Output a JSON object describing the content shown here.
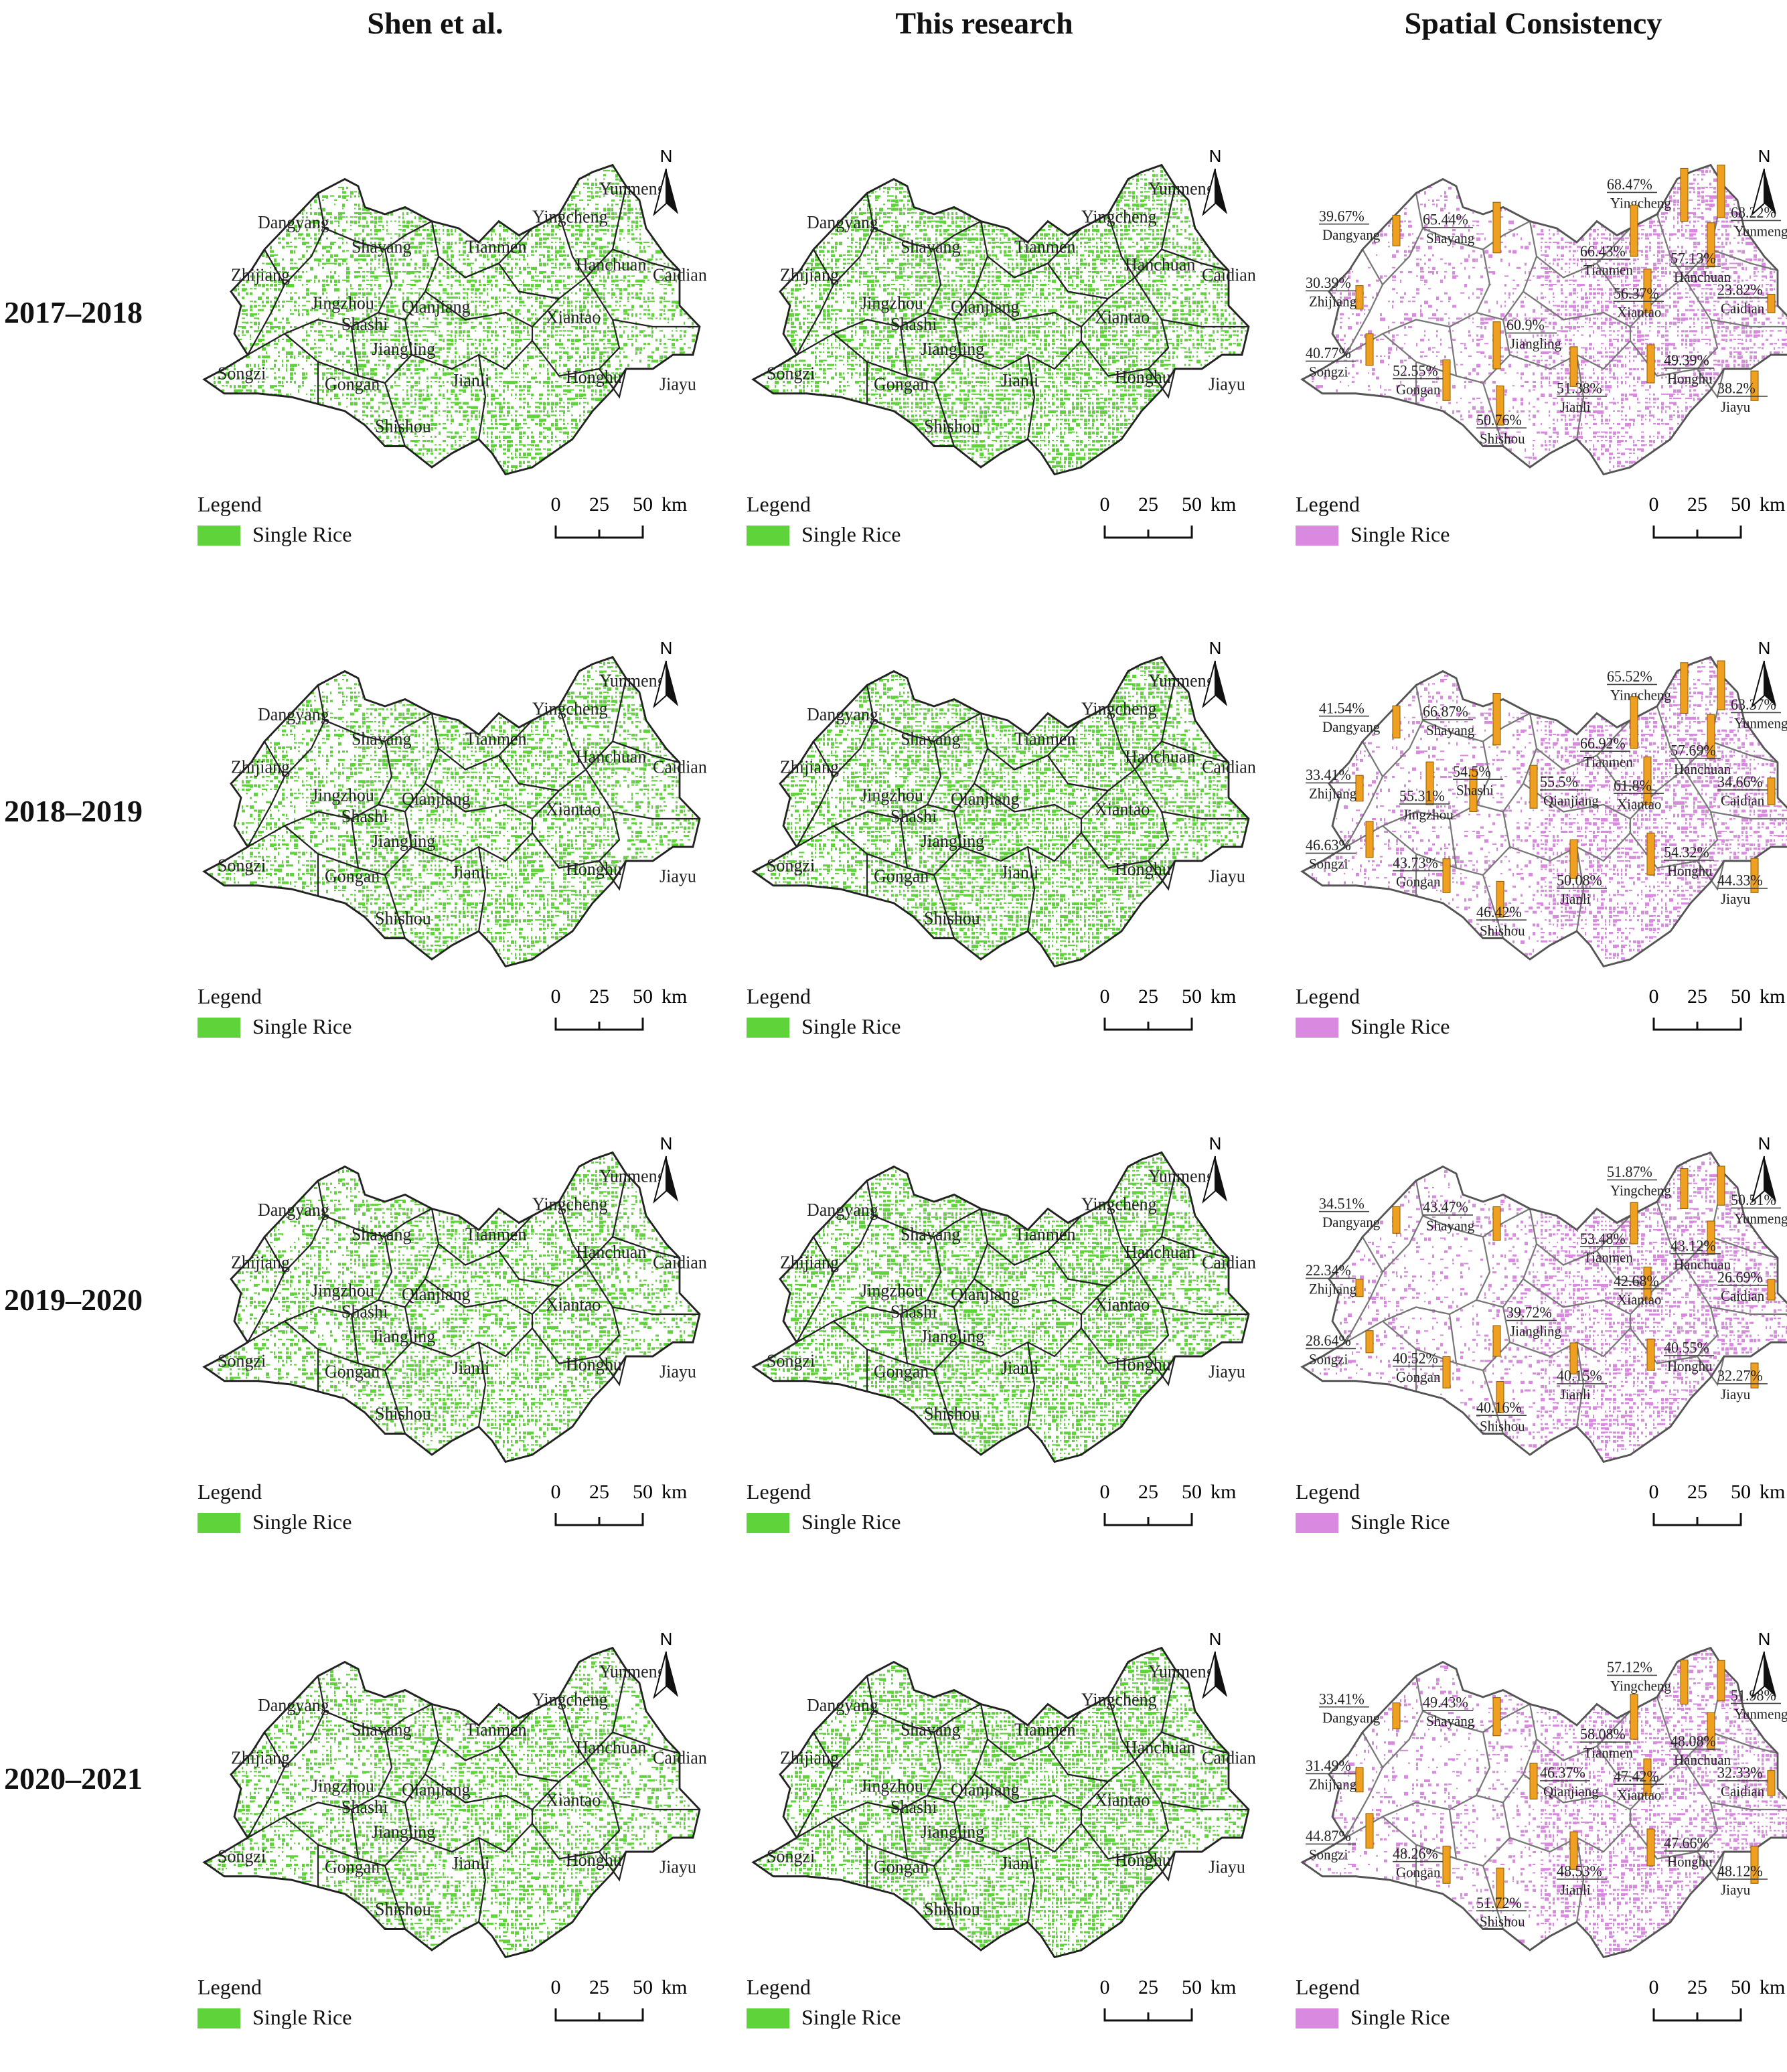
{
  "columns": [
    "Shen et al.",
    "This research",
    "Spatial Consistency"
  ],
  "rows": [
    "2017–2018",
    "2018–2019",
    "2019–2020",
    "2020–2021"
  ],
  "legend": {
    "title": "Legend",
    "item": "Single Rice"
  },
  "scalebar": {
    "ticks": [
      "0",
      "25",
      "50"
    ],
    "unit": "km"
  },
  "north_label": "N",
  "colors": {
    "single_rice_green": "#5fd43a",
    "single_rice_purple": "#d98ae0",
    "bar_orange": "#f0a020",
    "boundary": "#222222"
  },
  "regions": [
    "Dangyang",
    "Shayang",
    "Tianmen",
    "Yingcheng",
    "Yunmeng",
    "Hanchuan",
    "Caidian",
    "Zhijiang",
    "Jingzhou",
    "Shashi",
    "Qianjiang",
    "Xiantao",
    "Jiangling",
    "Songzi",
    "Gongan",
    "Jianli",
    "Honghu",
    "Jiayu",
    "Shishou"
  ],
  "consistency": [
    {
      "period": "2017–2018",
      "values": {
        "Yingcheng": "68.47%",
        "Yunmeng": "68.22%",
        "Dangyang": "39.67%",
        "Shayang": "65.44%",
        "Tianmen": "66.43%",
        "Hanchuan": "57.13%",
        "Caidian": "23.82%",
        "Zhijiang": "30.39%",
        "Xiantao": "56.37%",
        "Jiangling": "60.9%",
        "Songzi": "40.77%",
        "Gongan": "52.55%",
        "Jianli": "51.38%",
        "Honghu": "49.39%",
        "Jiayu": "38.2%",
        "Shishou": "50.76%"
      }
    },
    {
      "period": "2018–2019",
      "values": {
        "Yingcheng": "65.52%",
        "Yunmeng": "63.37%",
        "Dangyang": "41.54%",
        "Shayang": "66.87%",
        "Tianmen": "66.92%",
        "Hanchuan": "57.69%",
        "Caidian": "34.66%",
        "Zhijiang": "33.41%",
        "Shashi": "54.5%",
        "Jingzhou": "55.31%",
        "Qianjiang": "55.5%",
        "Xiantao": "61.8%",
        "Songzi": "46.63%",
        "Gongan": "43.73%",
        "Jianli": "50.08%",
        "Honghu": "54.32%",
        "Jiayu": "44.33%",
        "Shishou": "46.42%"
      }
    },
    {
      "period": "2019–2020",
      "values": {
        "Yingcheng": "51.87%",
        "Yunmeng": "50.51%",
        "Dangyang": "34.51%",
        "Shayang": "43.47%",
        "Tianmen": "53.48%",
        "Hanchuan": "43.12%",
        "Caidian": "26.69%",
        "Zhijiang": "22.34%",
        "Xiantao": "42.68%",
        "Jiangling": "39.72%",
        "Songzi": "28.64%",
        "Gongan": "40.52%",
        "Jianli": "40.15%",
        "Honghu": "40.55%",
        "Jiayu": "32.27%",
        "Shishou": "40.16%"
      }
    },
    {
      "period": "2020–2021",
      "values": {
        "Yingcheng": "57.12%",
        "Yunmeng": "51.98%",
        "Dangyang": "33.41%",
        "Shayang": "49.43%",
        "Tianmen": "58.08%",
        "Hanchuan": "48.08%",
        "Caidian": "32.33%",
        "Zhijiang": "31.49%",
        "Xiantao": "47.42%",
        "Qianjiang": "46.37%",
        "Songzi": "44.87%",
        "Gongan": "48.26%",
        "Jianli": "48.53%",
        "Honghu": "47.66%",
        "Jiayu": "48.12%",
        "Shishou": "51.72%"
      }
    }
  ]
}
